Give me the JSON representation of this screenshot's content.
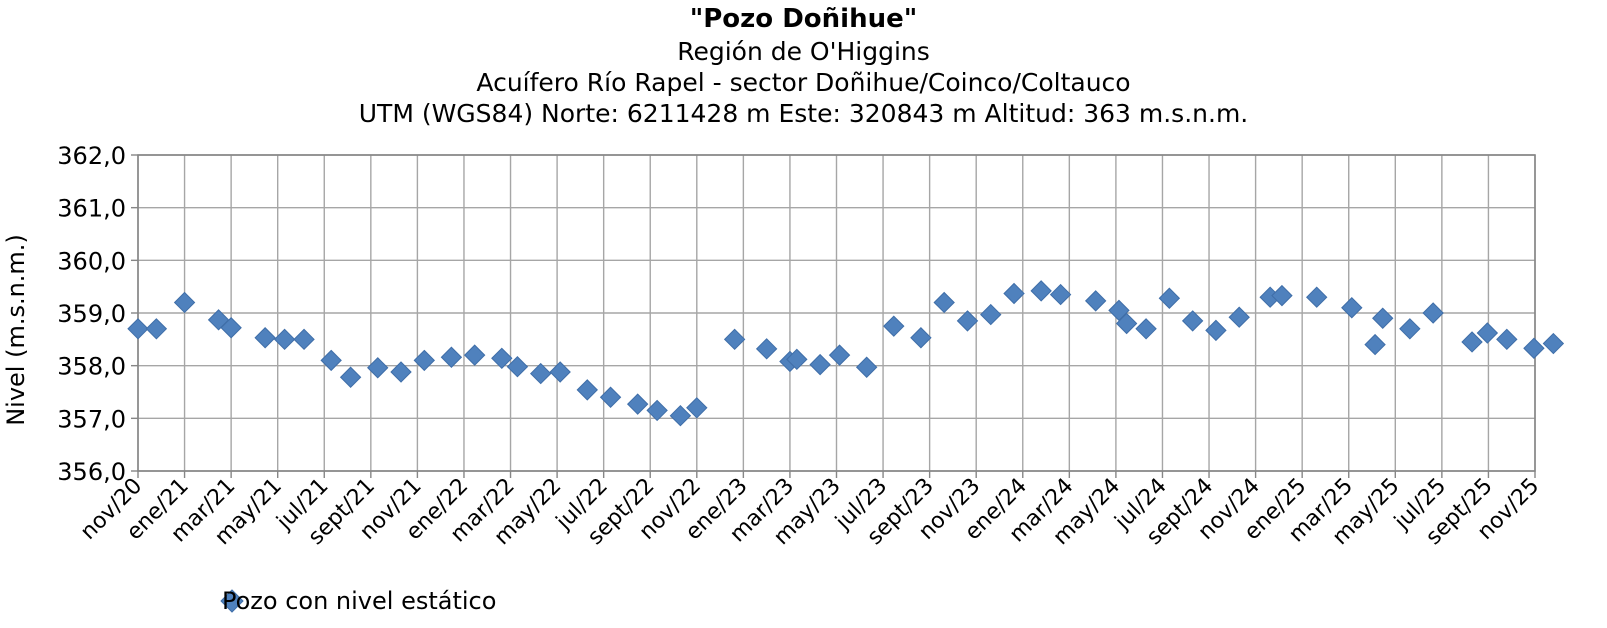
{
  "chart_data": {
    "type": "scatter",
    "title": "\"Pozo Doñihue\"",
    "subtitles": [
      "Región de O'Higgins",
      "Acuífero Río Rapel - sector Doñihue/Coinco/Coltauco",
      "UTM (WGS84) Norte: 6211428 m  Este: 320843 m   Altitud: 363 m.s.n.m."
    ],
    "ylabel": "Nivel (m.s.n.m.)",
    "xlabel": "",
    "ylim": [
      356.0,
      362.0
    ],
    "yticks": [
      "356,0",
      "357,0",
      "358,0",
      "359,0",
      "360,0",
      "361,0",
      "362,0"
    ],
    "xticks": [
      "nov/20",
      "ene/21",
      "mar/21",
      "may/21",
      "jul/21",
      "sept/21",
      "nov/21",
      "ene/22",
      "mar/22",
      "may/22",
      "jul/22",
      "sept/22",
      "nov/22",
      "ene/23",
      "mar/23",
      "may/23",
      "jul/23",
      "sept/23",
      "nov/23",
      "ene/24",
      "mar/24",
      "may/24",
      "jul/24",
      "sept/24",
      "nov/24",
      "ene/25",
      "mar/25",
      "may/25",
      "jul/25",
      "sept/25",
      "nov/25"
    ],
    "grid": true,
    "legend_position": "bottom-left",
    "series": [
      {
        "name": "Pozo con nivel estático",
        "color": "#4f81bd",
        "marker": "diamond",
        "points": [
          {
            "x": "2020-11-01",
            "y": 358.7
          },
          {
            "x": "2020-11-25",
            "y": 358.7
          },
          {
            "x": "2021-01-01",
            "y": 359.2
          },
          {
            "x": "2021-02-15",
            "y": 358.87
          },
          {
            "x": "2021-03-01",
            "y": 358.72
          },
          {
            "x": "2021-04-15",
            "y": 358.53
          },
          {
            "x": "2021-05-10",
            "y": 358.5
          },
          {
            "x": "2021-06-05",
            "y": 358.5
          },
          {
            "x": "2021-07-10",
            "y": 358.1
          },
          {
            "x": "2021-08-05",
            "y": 357.78
          },
          {
            "x": "2021-09-10",
            "y": 357.96
          },
          {
            "x": "2021-10-10",
            "y": 357.88
          },
          {
            "x": "2021-11-10",
            "y": 358.1
          },
          {
            "x": "2021-12-15",
            "y": 358.16
          },
          {
            "x": "2022-01-15",
            "y": 358.2
          },
          {
            "x": "2022-02-20",
            "y": 358.14
          },
          {
            "x": "2022-03-10",
            "y": 357.98
          },
          {
            "x": "2022-04-10",
            "y": 357.85
          },
          {
            "x": "2022-05-05",
            "y": 357.88
          },
          {
            "x": "2022-06-10",
            "y": 357.54
          },
          {
            "x": "2022-07-10",
            "y": 357.4
          },
          {
            "x": "2022-08-15",
            "y": 357.27
          },
          {
            "x": "2022-09-10",
            "y": 357.15
          },
          {
            "x": "2022-10-10",
            "y": 357.05
          },
          {
            "x": "2022-11-01",
            "y": 357.2
          },
          {
            "x": "2022-12-20",
            "y": 358.5
          },
          {
            "x": "2023-02-01",
            "y": 358.32
          },
          {
            "x": "2023-03-01",
            "y": 358.08
          },
          {
            "x": "2023-03-10",
            "y": 358.12
          },
          {
            "x": "2023-04-10",
            "y": 358.02
          },
          {
            "x": "2023-05-05",
            "y": 358.2
          },
          {
            "x": "2023-06-10",
            "y": 357.97
          },
          {
            "x": "2023-07-15",
            "y": 358.75
          },
          {
            "x": "2023-08-20",
            "y": 358.53
          },
          {
            "x": "2023-09-20",
            "y": 359.2
          },
          {
            "x": "2023-10-20",
            "y": 358.85
          },
          {
            "x": "2023-11-20",
            "y": 358.97
          },
          {
            "x": "2023-12-20",
            "y": 359.37
          },
          {
            "x": "2024-01-25",
            "y": 359.42
          },
          {
            "x": "2024-02-20",
            "y": 359.35
          },
          {
            "x": "2024-04-05",
            "y": 359.23
          },
          {
            "x": "2024-05-05",
            "y": 359.05
          },
          {
            "x": "2024-05-15",
            "y": 358.8
          },
          {
            "x": "2024-06-10",
            "y": 358.7
          },
          {
            "x": "2024-07-10",
            "y": 359.28
          },
          {
            "x": "2024-08-10",
            "y": 358.85
          },
          {
            "x": "2024-09-10",
            "y": 358.67
          },
          {
            "x": "2024-10-10",
            "y": 358.92
          },
          {
            "x": "2024-11-20",
            "y": 359.3
          },
          {
            "x": "2024-12-05",
            "y": 359.33
          },
          {
            "x": "2025-01-20",
            "y": 359.3
          },
          {
            "x": "2025-03-05",
            "y": 359.1
          },
          {
            "x": "2025-04-05",
            "y": 358.4
          },
          {
            "x": "2025-04-15",
            "y": 358.9
          },
          {
            "x": "2025-05-20",
            "y": 358.7
          },
          {
            "x": "2025-06-20",
            "y": 359.0
          },
          {
            "x": "2025-08-10",
            "y": 358.45
          },
          {
            "x": "2025-08-30",
            "y": 358.62
          },
          {
            "x": "2025-09-25",
            "y": 358.5
          },
          {
            "x": "2025-10-30",
            "y": 358.33
          },
          {
            "x": "2025-11-25",
            "y": 358.42
          }
        ]
      }
    ]
  }
}
